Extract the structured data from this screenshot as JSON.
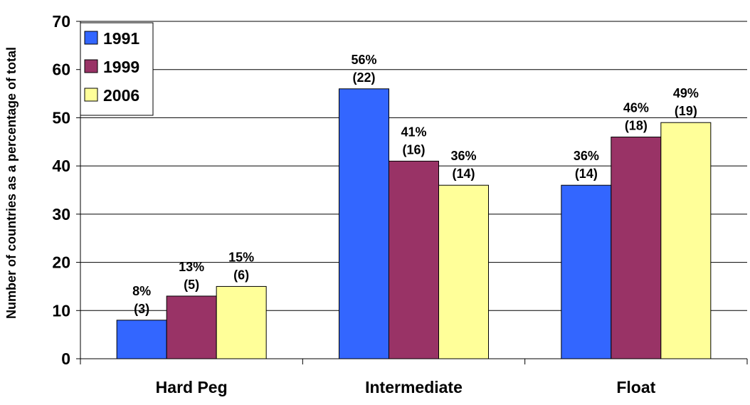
{
  "chart_data": {
    "type": "bar",
    "categories": [
      "Hard Peg",
      "Intermediate",
      "Float"
    ],
    "series": [
      {
        "name": "1991",
        "color": "#3366ff",
        "values": [
          8,
          56,
          36
        ],
        "labels": [
          "8%",
          "56%",
          "36%"
        ],
        "counts": [
          "(3)",
          "(22)",
          "(14)"
        ]
      },
      {
        "name": "1999",
        "color": "#993366",
        "values": [
          13,
          41,
          46
        ],
        "labels": [
          "13%",
          "41%",
          "46%"
        ],
        "counts": [
          "(5)",
          "(16)",
          "(18)"
        ]
      },
      {
        "name": "2006",
        "color": "#ffff99",
        "values": [
          15,
          36,
          49
        ],
        "labels": [
          "15%",
          "36%",
          "49%"
        ],
        "counts": [
          "(6)",
          "(14)",
          "(19)"
        ]
      }
    ],
    "ylabel": "Number of countries as a percentage of total",
    "ylim": [
      0,
      70
    ],
    "yticks": [
      "0",
      "10",
      "20",
      "30",
      "40",
      "50",
      "60",
      "70"
    ],
    "grid": true,
    "legend": "top-left"
  }
}
